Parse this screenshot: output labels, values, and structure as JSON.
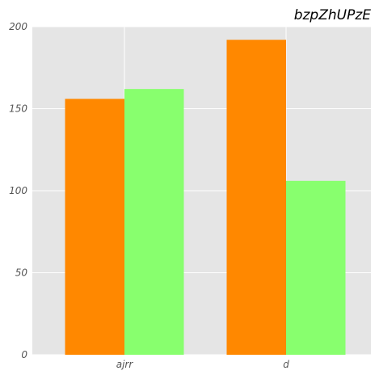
{
  "chart_data": {
    "type": "bar",
    "title": "bzpZhUPzE",
    "categories": [
      "ajrr",
      "d"
    ],
    "series": [
      {
        "color": "#ff8800",
        "values": [
          156,
          192
        ]
      },
      {
        "color": "#88ff6e",
        "values": [
          162,
          106
        ]
      }
    ],
    "ylim": [
      0,
      200
    ],
    "yticks": [
      0,
      50,
      100,
      150,
      200
    ],
    "ytick_labels": [
      "0",
      "50",
      "100",
      "150",
      "200"
    ],
    "grid": true,
    "background": "#e5e5e5"
  }
}
